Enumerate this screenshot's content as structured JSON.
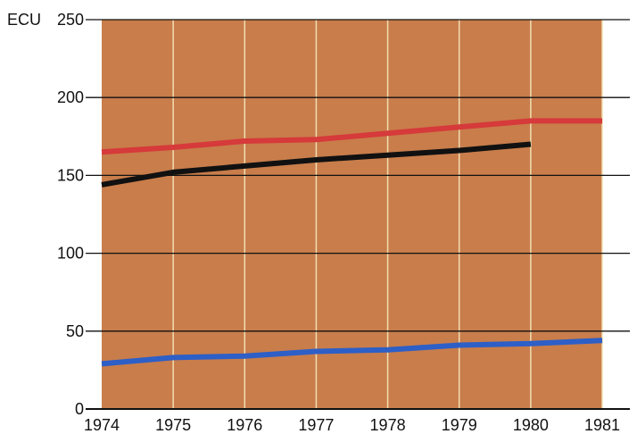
{
  "chart_data": {
    "type": "line",
    "title": "",
    "xlabel": "",
    "ylabel": "",
    "y_unit": "ECU",
    "x": [
      1974,
      1975,
      1976,
      1977,
      1978,
      1979,
      1980,
      1981
    ],
    "x_tick_labels": [
      "1974",
      "1975",
      "1976",
      "1977",
      "1978",
      "1979",
      "1980",
      "1981"
    ],
    "y_ticks": [
      0,
      50,
      100,
      150,
      200,
      250
    ],
    "y_tick_labels": [
      "0",
      "50",
      "100",
      "150",
      "200",
      "250"
    ],
    "xlim": [
      1974,
      1981
    ],
    "ylim": [
      0,
      250
    ],
    "grid": true,
    "legend": "none",
    "series": [
      {
        "color": "#d63a3a",
        "x": [
          1974,
          1975,
          1976,
          1977,
          1978,
          1979,
          1980,
          1981
        ],
        "values": [
          165,
          168,
          172,
          173,
          177,
          181,
          185,
          185
        ]
      },
      {
        "color": "#111111",
        "x": [
          1974,
          1975,
          1976,
          1977,
          1978,
          1979,
          1980
        ],
        "values": [
          144,
          152,
          156,
          160,
          163,
          166,
          170
        ]
      },
      {
        "color": "#2d5fc7",
        "x": [
          1974,
          1975,
          1976,
          1977,
          1978,
          1979,
          1980,
          1981
        ],
        "values": [
          29,
          33,
          34,
          37,
          38,
          41,
          42,
          44
        ]
      }
    ]
  },
  "colors": {
    "plot_background": "#c87d4b",
    "vertical_grid": "#f2ddb0",
    "horizontal_grid": "#111111",
    "text": "#111111"
  }
}
